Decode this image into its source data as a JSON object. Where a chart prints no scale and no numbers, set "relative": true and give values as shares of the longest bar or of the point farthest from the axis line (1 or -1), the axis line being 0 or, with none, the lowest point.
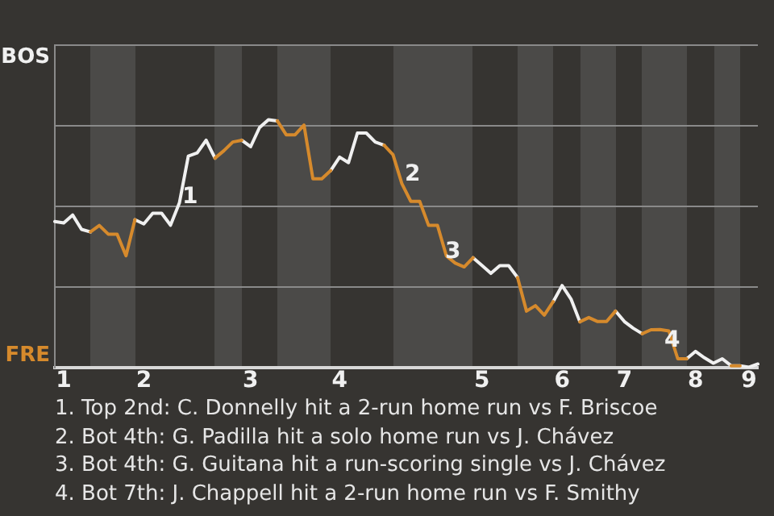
{
  "chart_data": {
    "type": "line",
    "relative": true,
    "categories": [
      null,
      "1",
      null,
      null,
      null,
      null,
      null,
      null,
      null,
      null,
      "2",
      null,
      null,
      null,
      null,
      null,
      null,
      null,
      null,
      null,
      null,
      null,
      "3",
      null,
      null,
      null,
      null,
      null,
      null,
      null,
      null,
      null,
      "4",
      null,
      null,
      null,
      null,
      null,
      null,
      null,
      null,
      null,
      null,
      null,
      null,
      null,
      null,
      null,
      "5",
      null,
      null,
      null,
      null,
      null,
      null,
      null,
      null,
      "6",
      null,
      null,
      null,
      null,
      null,
      null,
      "7",
      null,
      null,
      null,
      null,
      null,
      null,
      null,
      "8",
      null,
      null,
      null,
      null,
      null,
      "9",
      null
    ],
    "series": [
      {
        "color": "#f0f0f0",
        "values": [
          0.59,
          0.584,
          0.616,
          0.558,
          0.548,
          null,
          null,
          null,
          null,
          0.597,
          0.58,
          0.623,
          0.623,
          0.575,
          0.665,
          0.853,
          0.866,
          0.917,
          0.845,
          null,
          null,
          0.917,
          0.891,
          0.968,
          1,
          0.995,
          null,
          null,
          null,
          null,
          null,
          0.795,
          0.849,
          0.827,
          0.946,
          0.946,
          0.91,
          0.897,
          null,
          null,
          null,
          null,
          null,
          null,
          null,
          null,
          null,
          0.444,
          0.413,
          0.381,
          0.412,
          0.412,
          0.364,
          null,
          null,
          null,
          0.267,
          0.332,
          0.278,
          0.186,
          null,
          null,
          null,
          0.229,
          0.187,
          0.16,
          0.138,
          null,
          null,
          null,
          null,
          0.037,
          0.067,
          0.041,
          0.019,
          0.037,
          0.009,
          0.009,
          0.003,
          0.016
        ]
      },
      {
        "color": "#d68a2c",
        "values": [
          null,
          null,
          null,
          null,
          0.548,
          0.574,
          0.539,
          0.539,
          0.452,
          0.597,
          null,
          null,
          null,
          null,
          null,
          null,
          null,
          null,
          0.845,
          0.875,
          0.91,
          0.917,
          null,
          null,
          null,
          0.995,
          0.939,
          0.939,
          0.978,
          0.762,
          0.762,
          0.795,
          null,
          null,
          null,
          null,
          null,
          0.897,
          0.859,
          0.742,
          0.671,
          0.671,
          0.574,
          0.574,
          0.451,
          0.422,
          0.407,
          0.444,
          null,
          null,
          null,
          null,
          0.364,
          0.229,
          0.251,
          0.213,
          0.267,
          null,
          null,
          0.186,
          0.203,
          0.187,
          0.187,
          0.229,
          null,
          null,
          0.138,
          0.154,
          0.155,
          0.149,
          0.037,
          0.037,
          null,
          null,
          null,
          null,
          0.009,
          0.009,
          null,
          null
        ]
      }
    ],
    "grid": "y",
    "legend": false,
    "marker": "none",
    "line_style": "solid",
    "annotations": [
      "BOS",
      "FRE",
      "1",
      "2",
      "3",
      "4",
      "1. Top 2nd: C. Donnelly hit a 2-run home run vs F. Briscoe",
      "2. Bot 4th: G. Padilla hit a solo home run vs J. Chávez",
      "3. Bot 4th: G. Guitana hit a run-scoring single vs J. Chávez",
      "4. Bot 7th: J. Chappell hit a 2-run home run vs F. Smithy"
    ]
  }
}
